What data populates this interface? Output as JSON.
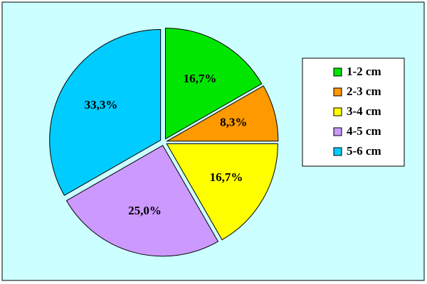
{
  "chart_data": {
    "type": "pie",
    "categories": [
      "1-2 cm",
      "2-3 cm",
      "3-4 cm",
      "4-5 cm",
      "5-6 cm"
    ],
    "values": [
      16.7,
      8.3,
      16.7,
      25.0,
      33.3
    ],
    "value_labels": [
      "16,7%",
      "8,3%",
      "16,7%",
      "25,0%",
      "33,3%"
    ],
    "colors": [
      "#00e600",
      "#ff9900",
      "#ffff00",
      "#cc99ff",
      "#00ccff"
    ],
    "legend": "right"
  }
}
